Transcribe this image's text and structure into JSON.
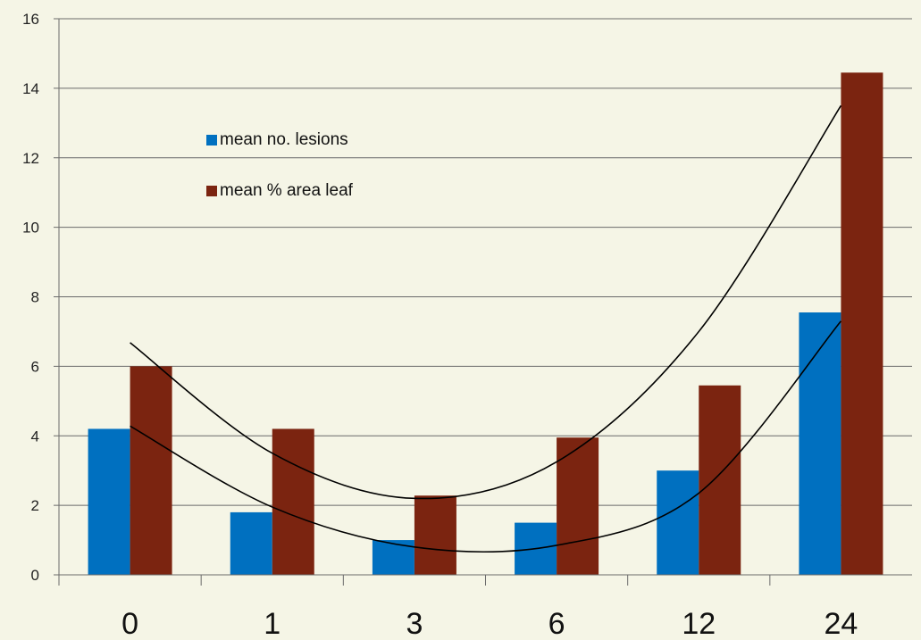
{
  "chart_data": {
    "type": "bar",
    "title": "",
    "xlabel": "",
    "ylabel": "",
    "categories": [
      "0",
      "1",
      "3",
      "6",
      "12",
      "24"
    ],
    "ylim": [
      0,
      16
    ],
    "yticks": [
      0,
      2,
      4,
      6,
      8,
      10,
      12,
      14,
      16
    ],
    "grid": true,
    "legend_position": "upper-left-inside",
    "series": [
      {
        "name": "mean no. lesions",
        "color": "#0070c0",
        "values": [
          4.2,
          1.8,
          1.0,
          1.5,
          3.0,
          7.55
        ]
      },
      {
        "name": "mean % area leaf",
        "color": "#7b2410",
        "values": [
          6.0,
          4.2,
          2.28,
          3.95,
          5.45,
          14.45
        ]
      }
    ],
    "trendlines": [
      {
        "series": "mean no. lesions",
        "type": "polynomial-2",
        "color": "#000000",
        "points": [
          [
            0,
            4.28
          ],
          [
            1,
            1.95
          ],
          [
            2,
            0.8
          ],
          [
            3,
            0.85
          ],
          [
            4,
            2.35
          ],
          [
            5,
            7.3
          ]
        ]
      },
      {
        "series": "mean % area leaf",
        "type": "polynomial-2",
        "color": "#000000",
        "points": [
          [
            0,
            6.68
          ],
          [
            1,
            3.5
          ],
          [
            2,
            2.2
          ],
          [
            3,
            3.25
          ],
          [
            4,
            7.0
          ],
          [
            5,
            13.5
          ]
        ]
      }
    ]
  }
}
